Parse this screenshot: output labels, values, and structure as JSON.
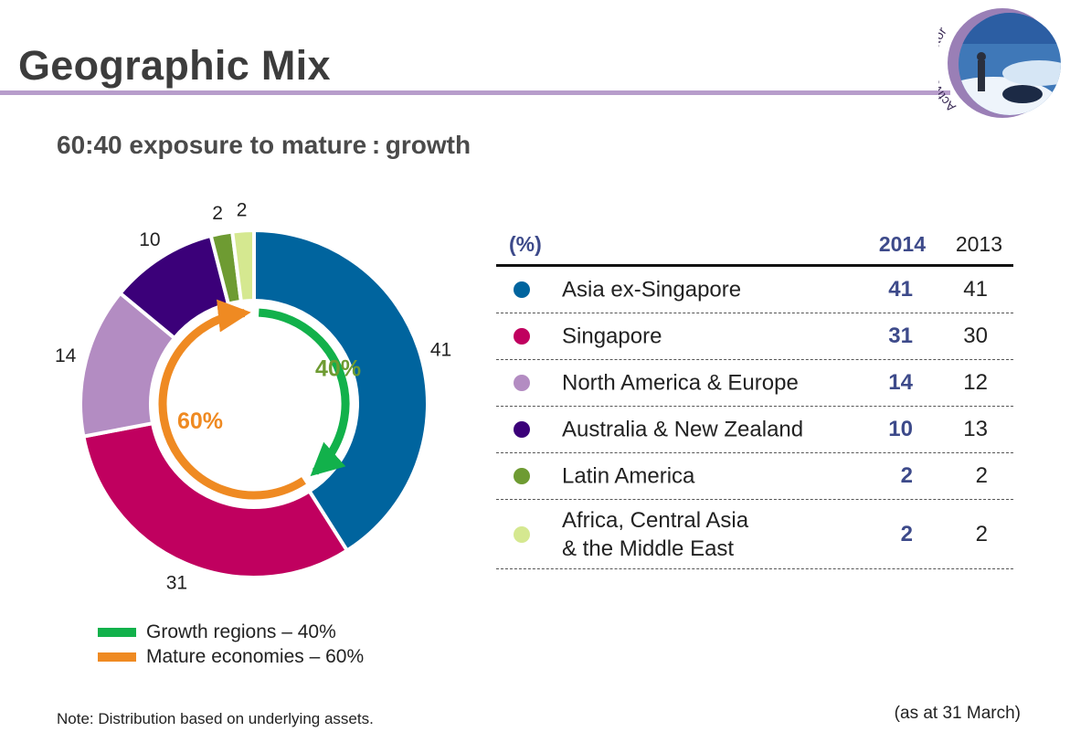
{
  "slide": {
    "title": "Geographic Mix",
    "subtitle": "60:40 exposure to mature : growth",
    "note": "Note: Distribution based on underlying assets.",
    "as_at": "(as at 31 March)",
    "logo_text": "Active Investor"
  },
  "legend": [
    {
      "label": "Growth regions – 40%",
      "color": "#12b14b"
    },
    {
      "label": "Mature economies – 60%",
      "color": "#ef8a22"
    }
  ],
  "table": {
    "headers": {
      "pct": "(%)",
      "y2014": "2014",
      "y2013": "2013"
    },
    "rows": [
      {
        "label": "Asia ex-Singapore",
        "v2014": "41",
        "v2013": "41",
        "color": "#00649e"
      },
      {
        "label": "Singapore",
        "v2014": "31",
        "v2013": "30",
        "color": "#c0005f"
      },
      {
        "label": "North America & Europe",
        "v2014": "14",
        "v2013": "12",
        "color": "#b38cc2"
      },
      {
        "label": "Australia & New Zealand",
        "v2014": "10",
        "v2013": "13",
        "color": "#3b0079"
      },
      {
        "label": "Latin America",
        "v2014": "2",
        "v2013": "2",
        "color": "#6e9b32"
      },
      {
        "label": "Africa, Central Asia\n& the Middle East",
        "v2014": "2",
        "v2013": "2",
        "color": "#d5e890"
      }
    ]
  },
  "chart_data": {
    "type": "pie",
    "subtype": "donut",
    "title": "",
    "categories": [
      "Asia ex-Singapore",
      "Singapore",
      "North America & Europe",
      "Australia & New Zealand",
      "Latin America",
      "Africa, Central Asia & the Middle East"
    ],
    "values": [
      41,
      31,
      14,
      10,
      2,
      2
    ],
    "labels": [
      "41",
      "31",
      "14",
      "10",
      "2",
      "2"
    ],
    "colors": [
      "#00649e",
      "#c0005f",
      "#b38cc2",
      "#3b0079",
      "#6e9b32",
      "#d5e890"
    ],
    "inner_split": [
      {
        "name": "Growth regions",
        "value": 40,
        "label": "40%",
        "color": "#12b14b",
        "label_color": "#6e9b32"
      },
      {
        "name": "Mature economies",
        "value": 60,
        "label": "60%",
        "color": "#ef8a22",
        "label_color": "#ef8a22"
      }
    ]
  }
}
